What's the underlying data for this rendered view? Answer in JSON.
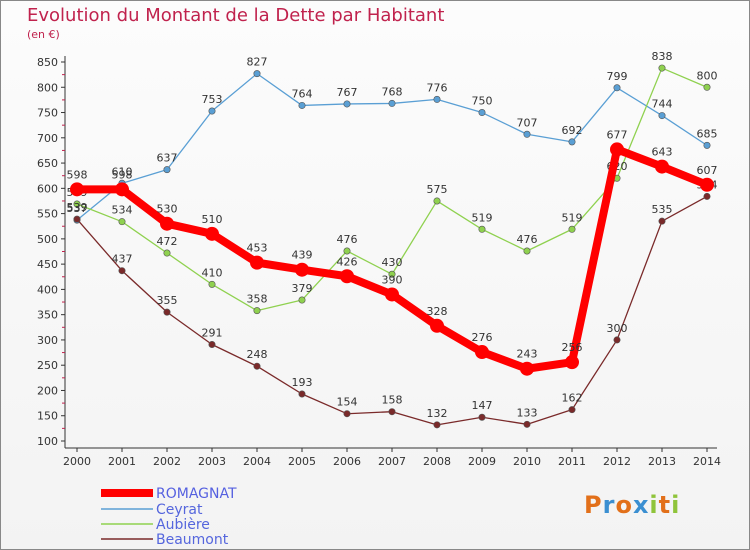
{
  "title": "Evolution du Montant de la Dette par Habitant",
  "subtitle": "(en €)",
  "logo_text": "Proxiti",
  "colors": {
    "title": "#c0224d",
    "romagnat": "#ff0000",
    "ceyrat": "#5a9fd4",
    "aubiere": "#8fd14f",
    "beaumont": "#7a2a2a"
  },
  "chart_data": {
    "type": "line",
    "title": "Evolution du Montant de la Dette par Habitant",
    "subtitle": "(en €)",
    "xlabel": "",
    "ylabel": "",
    "ylim": [
      100,
      850
    ],
    "yticks": [
      100,
      150,
      200,
      250,
      300,
      350,
      400,
      450,
      500,
      550,
      600,
      650,
      700,
      750,
      800,
      850
    ],
    "grid": false,
    "legend_position": "bottom-left",
    "x": [
      "2000",
      "2001",
      "2002",
      "2003",
      "2004",
      "2005",
      "2006",
      "2007",
      "2008",
      "2009",
      "2010",
      "2011",
      "2012",
      "2013",
      "2014"
    ],
    "series": [
      {
        "name": "Ceyrat",
        "color": "#5a9fd4",
        "values": [
          537,
          610,
          637,
          753,
          827,
          764,
          767,
          768,
          776,
          750,
          707,
          692,
          799,
          744,
          685
        ]
      },
      {
        "name": "Aubière",
        "color": "#8fd14f",
        "values": [
          569,
          534,
          472,
          410,
          358,
          379,
          476,
          430,
          575,
          519,
          476,
          519,
          620,
          838,
          800
        ]
      },
      {
        "name": "Beaumont",
        "color": "#7a2a2a",
        "values": [
          539,
          437,
          355,
          291,
          248,
          193,
          154,
          158,
          132,
          147,
          133,
          162,
          300,
          535,
          584
        ]
      },
      {
        "name": "ROMAGNAT",
        "color": "#ff0000",
        "values": [
          598,
          598,
          530,
          510,
          453,
          439,
          426,
          390,
          328,
          276,
          243,
          256,
          677,
          643,
          607
        ]
      }
    ],
    "legend_order": [
      "ROMAGNAT",
      "Ceyrat",
      "Aubière",
      "Beaumont"
    ]
  }
}
